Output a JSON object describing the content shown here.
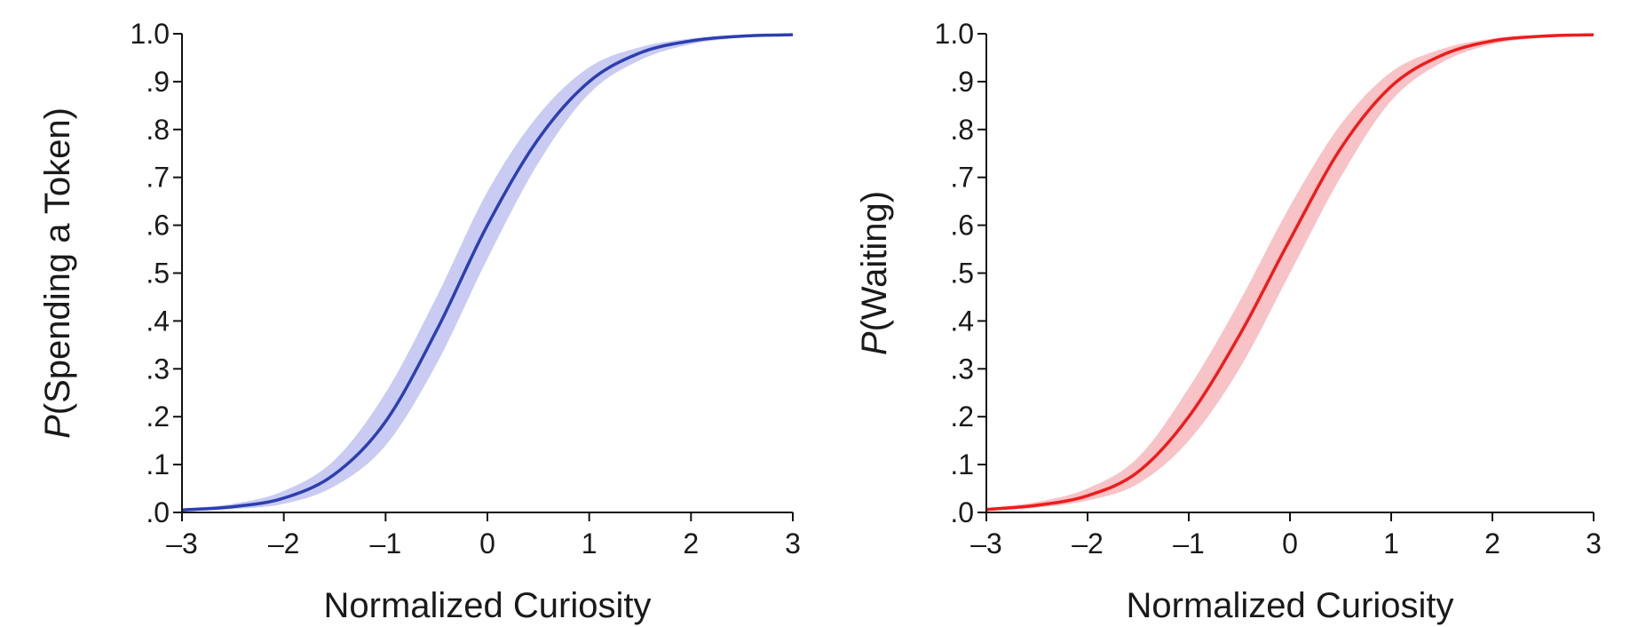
{
  "chart_data": [
    {
      "type": "line",
      "xlabel": "Normalized Curiosity",
      "ylabel_prefix": "P",
      "ylabel_rest": "(Spending a Token)",
      "xlim": [
        -3,
        3
      ],
      "ylim": [
        0,
        1
      ],
      "x_ticks": [
        -3,
        -2,
        -1,
        0,
        1,
        2,
        3
      ],
      "x_tick_labels": [
        "–3",
        "–2",
        "–1",
        "0",
        "1",
        "2",
        "3"
      ],
      "y_ticks": [
        0,
        0.1,
        0.2,
        0.3,
        0.4,
        0.5,
        0.6,
        0.7,
        0.8,
        0.9,
        1.0
      ],
      "y_tick_labels": [
        ".0",
        ".1",
        ".2",
        ".3",
        ".4",
        ".5",
        ".6",
        ".7",
        ".8",
        ".9",
        "1.0"
      ],
      "grid": false,
      "line_color": "#2b3fb0",
      "band_color": "#c9cbf2",
      "series": [
        {
          "x": [
            -3,
            -2.5,
            -2,
            -1.5,
            -1,
            -0.5,
            0,
            0.5,
            1,
            1.5,
            2,
            2.5,
            3
          ],
          "values": [
            0.005,
            0.012,
            0.03,
            0.08,
            0.19,
            0.38,
            0.6,
            0.78,
            0.9,
            0.96,
            0.985,
            0.995,
            0.998
          ],
          "lower": [
            0.003,
            0.007,
            0.018,
            0.055,
            0.14,
            0.31,
            0.53,
            0.73,
            0.875,
            0.945,
            0.978,
            0.992,
            0.997
          ],
          "upper": [
            0.008,
            0.018,
            0.045,
            0.11,
            0.25,
            0.45,
            0.67,
            0.83,
            0.93,
            0.972,
            0.99,
            0.997,
            0.999
          ]
        }
      ]
    },
    {
      "type": "line",
      "xlabel": "Normalized Curiosity",
      "ylabel_prefix": "P",
      "ylabel_rest": "(Waiting)",
      "xlim": [
        -3,
        3
      ],
      "ylim": [
        0,
        1
      ],
      "x_ticks": [
        -3,
        -2,
        -1,
        0,
        1,
        2,
        3
      ],
      "x_tick_labels": [
        "–3",
        "–2",
        "–1",
        "0",
        "1",
        "2",
        "3"
      ],
      "y_ticks": [
        0,
        0.1,
        0.2,
        0.3,
        0.4,
        0.5,
        0.6,
        0.7,
        0.8,
        0.9,
        1.0
      ],
      "y_tick_labels": [
        ".0",
        ".1",
        ".2",
        ".3",
        ".4",
        ".5",
        ".6",
        ".7",
        ".8",
        ".9",
        "1.0"
      ],
      "grid": false,
      "line_color": "#ee1c1c",
      "band_color": "#f7c3c6",
      "series": [
        {
          "x": [
            -3,
            -2.5,
            -2,
            -1.5,
            -1,
            -0.5,
            0,
            0.5,
            1,
            1.5,
            2,
            2.5,
            3
          ],
          "values": [
            0.006,
            0.015,
            0.035,
            0.085,
            0.2,
            0.37,
            0.57,
            0.76,
            0.89,
            0.955,
            0.985,
            0.995,
            0.998
          ],
          "lower": [
            0.004,
            0.01,
            0.025,
            0.06,
            0.15,
            0.3,
            0.5,
            0.7,
            0.86,
            0.94,
            0.978,
            0.992,
            0.997
          ],
          "upper": [
            0.009,
            0.022,
            0.05,
            0.115,
            0.26,
            0.44,
            0.64,
            0.81,
            0.92,
            0.968,
            0.99,
            0.997,
            0.999
          ]
        }
      ]
    }
  ]
}
